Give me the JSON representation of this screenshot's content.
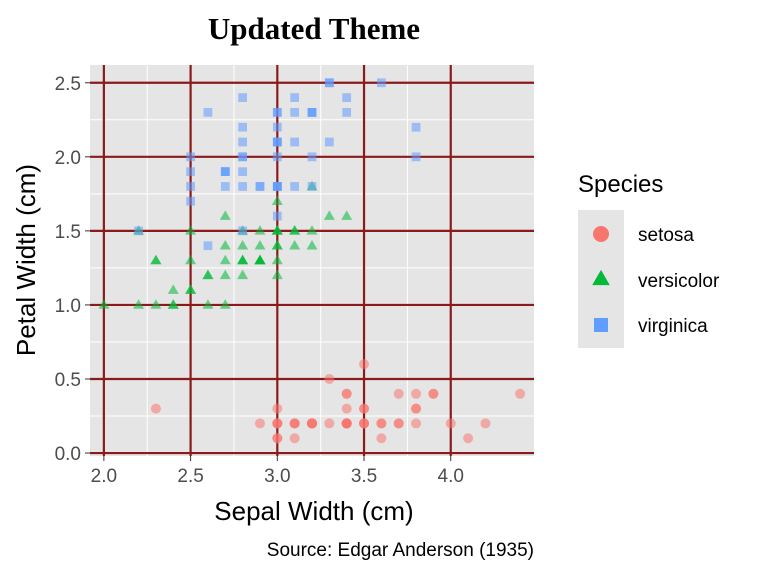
{
  "chart_data": {
    "type": "scatter",
    "title": "Updated Theme",
    "xlabel": "Sepal Width (cm)",
    "ylabel": "Petal Width (cm)",
    "caption": "Source: Edgar Anderson (1935)",
    "xlim": [
      1.92,
      4.48
    ],
    "ylim": [
      -0.02,
      2.62
    ],
    "x_ticks": [
      2.0,
      2.5,
      3.0,
      3.5,
      4.0
    ],
    "x_tick_labels": [
      "2.0",
      "2.5",
      "3.0",
      "3.5",
      "4.0"
    ],
    "y_ticks": [
      0.0,
      0.5,
      1.0,
      1.5,
      2.0,
      2.5
    ],
    "y_tick_labels": [
      "0.0",
      "0.5",
      "1.0",
      "1.5",
      "2.0",
      "2.5"
    ],
    "grid": true,
    "legend_title": "Species",
    "legend_position": "right",
    "series": [
      {
        "name": "setosa",
        "shape": "circle",
        "color": "#F8766D",
        "points": [
          [
            3.5,
            0.2
          ],
          [
            3.0,
            0.2
          ],
          [
            3.2,
            0.2
          ],
          [
            3.1,
            0.2
          ],
          [
            3.6,
            0.2
          ],
          [
            3.9,
            0.4
          ],
          [
            3.4,
            0.3
          ],
          [
            3.4,
            0.2
          ],
          [
            2.9,
            0.2
          ],
          [
            3.1,
            0.1
          ],
          [
            3.7,
            0.2
          ],
          [
            3.4,
            0.2
          ],
          [
            3.0,
            0.1
          ],
          [
            3.0,
            0.1
          ],
          [
            4.0,
            0.2
          ],
          [
            4.4,
            0.4
          ],
          [
            3.9,
            0.4
          ],
          [
            3.5,
            0.3
          ],
          [
            3.8,
            0.3
          ],
          [
            3.8,
            0.3
          ],
          [
            3.4,
            0.2
          ],
          [
            3.7,
            0.4
          ],
          [
            3.6,
            0.2
          ],
          [
            3.3,
            0.5
          ],
          [
            3.4,
            0.2
          ],
          [
            3.0,
            0.2
          ],
          [
            3.4,
            0.4
          ],
          [
            3.5,
            0.2
          ],
          [
            3.4,
            0.2
          ],
          [
            3.2,
            0.2
          ],
          [
            3.1,
            0.2
          ],
          [
            3.4,
            0.4
          ],
          [
            4.1,
            0.1
          ],
          [
            4.2,
            0.2
          ],
          [
            3.1,
            0.2
          ],
          [
            3.2,
            0.2
          ],
          [
            3.5,
            0.2
          ],
          [
            3.6,
            0.1
          ],
          [
            3.0,
            0.2
          ],
          [
            3.4,
            0.2
          ],
          [
            3.5,
            0.3
          ],
          [
            2.3,
            0.3
          ],
          [
            3.2,
            0.2
          ],
          [
            3.5,
            0.6
          ],
          [
            3.8,
            0.4
          ],
          [
            3.0,
            0.3
          ],
          [
            3.8,
            0.2
          ],
          [
            3.2,
            0.2
          ],
          [
            3.7,
            0.2
          ],
          [
            3.3,
            0.2
          ]
        ]
      },
      {
        "name": "versicolor",
        "shape": "triangle",
        "color": "#00BA38",
        "points": [
          [
            3.2,
            1.4
          ],
          [
            3.2,
            1.5
          ],
          [
            3.1,
            1.5
          ],
          [
            2.3,
            1.3
          ],
          [
            2.8,
            1.5
          ],
          [
            2.8,
            1.3
          ],
          [
            3.3,
            1.6
          ],
          [
            2.4,
            1.0
          ],
          [
            2.9,
            1.3
          ],
          [
            2.7,
            1.4
          ],
          [
            2.0,
            1.0
          ],
          [
            3.0,
            1.5
          ],
          [
            2.2,
            1.0
          ],
          [
            2.9,
            1.4
          ],
          [
            2.9,
            1.3
          ],
          [
            3.1,
            1.4
          ],
          [
            3.0,
            1.5
          ],
          [
            2.7,
            1.0
          ],
          [
            2.2,
            1.5
          ],
          [
            2.5,
            1.1
          ],
          [
            3.2,
            1.8
          ],
          [
            2.8,
            1.3
          ],
          [
            2.5,
            1.5
          ],
          [
            2.8,
            1.2
          ],
          [
            2.9,
            1.3
          ],
          [
            3.0,
            1.4
          ],
          [
            2.8,
            1.4
          ],
          [
            3.0,
            1.7
          ],
          [
            2.9,
            1.5
          ],
          [
            2.6,
            1.0
          ],
          [
            2.4,
            1.1
          ],
          [
            2.4,
            1.0
          ],
          [
            2.7,
            1.2
          ],
          [
            2.7,
            1.6
          ],
          [
            3.0,
            1.5
          ],
          [
            3.4,
            1.6
          ],
          [
            3.1,
            1.5
          ],
          [
            2.3,
            1.3
          ],
          [
            3.0,
            1.3
          ],
          [
            2.5,
            1.3
          ],
          [
            2.6,
            1.2
          ],
          [
            3.0,
            1.4
          ],
          [
            2.6,
            1.2
          ],
          [
            2.3,
            1.0
          ],
          [
            2.7,
            1.3
          ],
          [
            3.0,
            1.2
          ],
          [
            2.9,
            1.3
          ],
          [
            2.9,
            1.3
          ],
          [
            2.5,
            1.1
          ],
          [
            2.8,
            1.3
          ]
        ]
      },
      {
        "name": "virginica",
        "shape": "square",
        "color": "#619CFF",
        "points": [
          [
            3.3,
            2.5
          ],
          [
            2.7,
            1.9
          ],
          [
            3.0,
            2.1
          ],
          [
            2.9,
            1.8
          ],
          [
            3.0,
            2.2
          ],
          [
            3.0,
            2.1
          ],
          [
            2.5,
            1.7
          ],
          [
            2.9,
            1.8
          ],
          [
            2.5,
            1.8
          ],
          [
            3.6,
            2.5
          ],
          [
            3.2,
            2.0
          ],
          [
            2.7,
            1.9
          ],
          [
            3.0,
            2.1
          ],
          [
            2.5,
            2.0
          ],
          [
            2.8,
            2.4
          ],
          [
            3.2,
            2.3
          ],
          [
            3.0,
            1.8
          ],
          [
            3.8,
            2.2
          ],
          [
            2.6,
            2.3
          ],
          [
            2.2,
            1.5
          ],
          [
            3.2,
            2.3
          ],
          [
            2.8,
            2.0
          ],
          [
            2.8,
            2.0
          ],
          [
            2.7,
            1.8
          ],
          [
            3.3,
            2.1
          ],
          [
            3.2,
            1.8
          ],
          [
            2.8,
            1.8
          ],
          [
            3.0,
            1.8
          ],
          [
            2.8,
            2.1
          ],
          [
            3.0,
            1.6
          ],
          [
            2.8,
            1.9
          ],
          [
            3.8,
            2.0
          ],
          [
            2.8,
            2.2
          ],
          [
            2.8,
            1.5
          ],
          [
            2.6,
            1.4
          ],
          [
            3.0,
            2.3
          ],
          [
            3.4,
            2.4
          ],
          [
            3.1,
            1.8
          ],
          [
            3.0,
            1.8
          ],
          [
            3.1,
            2.1
          ],
          [
            3.1,
            2.4
          ],
          [
            3.1,
            2.3
          ],
          [
            2.7,
            1.9
          ],
          [
            3.2,
            2.3
          ],
          [
            3.3,
            2.5
          ],
          [
            3.0,
            2.3
          ],
          [
            2.5,
            1.9
          ],
          [
            3.0,
            2.0
          ],
          [
            3.4,
            2.3
          ],
          [
            3.0,
            1.8
          ]
        ]
      }
    ]
  }
}
